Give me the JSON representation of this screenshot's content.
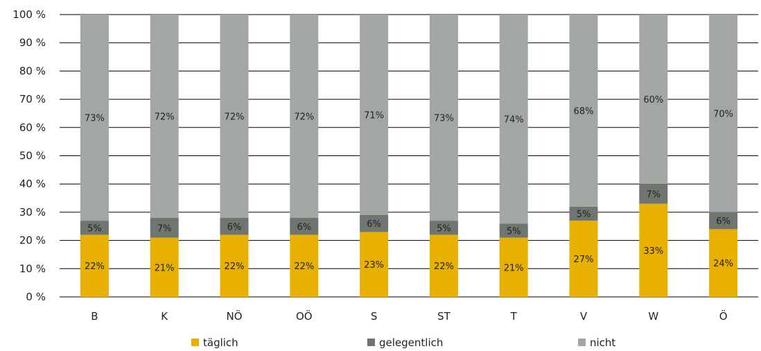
{
  "chart_data": {
    "type": "bar",
    "stacked": true,
    "percent_stacked": true,
    "categories": [
      "B",
      "K",
      "NÖ",
      "OÖ",
      "S",
      "ST",
      "T",
      "V",
      "W",
      "Ö"
    ],
    "series": [
      {
        "name": "täglich",
        "color": "#e8b000",
        "values": [
          22,
          21,
          22,
          22,
          23,
          22,
          21,
          27,
          33,
          24
        ]
      },
      {
        "name": "gelegentlich",
        "color": "#6e766f",
        "values": [
          5,
          7,
          6,
          6,
          6,
          5,
          5,
          5,
          7,
          6
        ]
      },
      {
        "name": "nicht",
        "color": "#a3a7a3",
        "values": [
          73,
          72,
          72,
          72,
          71,
          73,
          74,
          68,
          60,
          70
        ]
      }
    ],
    "value_labels": [
      [
        "22%",
        "21%",
        "22%",
        "22%",
        "23%",
        "22%",
        "21%",
        "27%",
        "33%",
        "24%"
      ],
      [
        "5%",
        "7%",
        "6%",
        "6%",
        "6%",
        "5%",
        "5%",
        "5%",
        "7%",
        "6%"
      ],
      [
        "73%",
        "72%",
        "72%",
        "72%",
        "71%",
        "73%",
        "74%",
        "68%",
        "60%",
        "70%"
      ]
    ],
    "y_ticks": [
      "0 %",
      "10 %",
      "20 %",
      "30 %",
      "40 %",
      "50 %",
      "60 %",
      "70 %",
      "80 %",
      "90 %",
      "100 %"
    ],
    "ylim": [
      0,
      100
    ],
    "grid": true,
    "legend_position": "bottom",
    "title": "",
    "xlabel": "",
    "ylabel": ""
  }
}
